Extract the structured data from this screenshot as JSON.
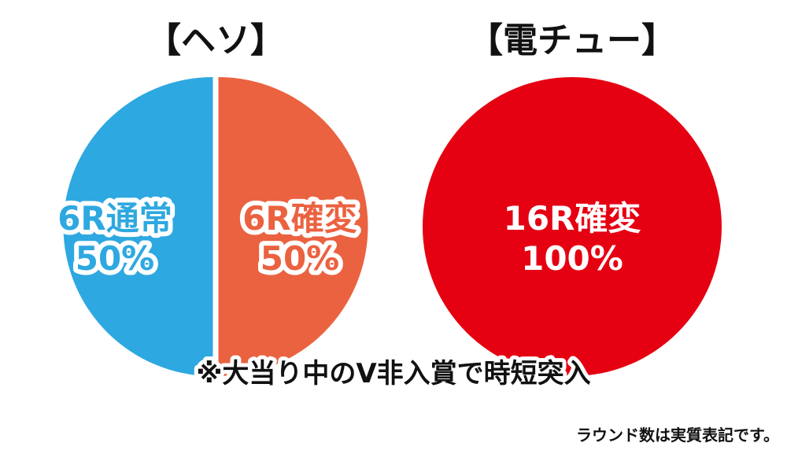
{
  "chart_data": [
    {
      "type": "pie",
      "title": "【ヘソ】",
      "slices": [
        {
          "label": "6R通常",
          "value": 50,
          "value_label": "50%",
          "color": "#2ea8e0",
          "text_color": "#2ea8e0"
        },
        {
          "label": "6R確変",
          "value": 50,
          "value_label": "50%",
          "color": "#eb6240",
          "text_color": "#eb6240"
        }
      ]
    },
    {
      "type": "pie",
      "title": "【電チュー】",
      "slices": [
        {
          "label": "16R確変",
          "value": 100,
          "value_label": "100%",
          "color": "#e50012",
          "text_color": "#ffffff"
        }
      ]
    }
  ],
  "footnote": "※大当り中のV非入賞で時短突入",
  "note": "ラウンド数は実質表記です。"
}
